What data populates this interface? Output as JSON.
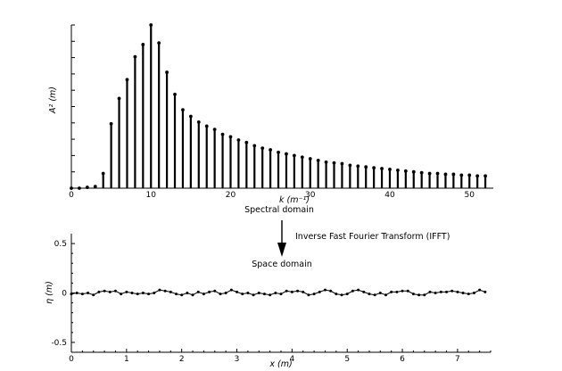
{
  "chart_data": [
    {
      "type": "bar",
      "style": "stem",
      "ylabel": "A² (m)",
      "xlabel": "k (m⁻¹)",
      "xlim": [
        0,
        53
      ],
      "ylim": [
        0,
        10
      ],
      "xticks": [
        0,
        10,
        20,
        30,
        40,
        50
      ],
      "x": [
        0,
        1,
        2,
        3,
        4,
        5,
        6,
        7,
        8,
        9,
        10,
        11,
        12,
        13,
        14,
        15,
        16,
        17,
        18,
        19,
        20,
        21,
        22,
        23,
        24,
        25,
        26,
        27,
        28,
        29,
        30,
        31,
        32,
        33,
        34,
        35,
        36,
        37,
        38,
        39,
        40,
        41,
        42,
        43,
        44,
        45,
        46,
        47,
        48,
        49,
        50,
        51,
        52
      ],
      "values": [
        0,
        0,
        0.05,
        0.1,
        0.9,
        3.95,
        5.5,
        6.65,
        8.05,
        8.8,
        10,
        8.9,
        7.1,
        5.75,
        4.8,
        4.4,
        4.05,
        3.8,
        3.6,
        3.3,
        3.15,
        2.95,
        2.8,
        2.6,
        2.45,
        2.35,
        2.2,
        2.1,
        2.0,
        1.9,
        1.8,
        1.7,
        1.6,
        1.55,
        1.5,
        1.4,
        1.35,
        1.3,
        1.25,
        1.2,
        1.15,
        1.1,
        1.05,
        1.0,
        0.95,
        0.9,
        0.9,
        0.85,
        0.85,
        0.8,
        0.8,
        0.75,
        0.75
      ],
      "grid": false
    },
    {
      "type": "line",
      "ylabel": "η (m)",
      "xlabel": "x (m)",
      "xlim": [
        0,
        7.6
      ],
      "ylim": [
        -0.6,
        0.6
      ],
      "xticks": [
        0,
        1,
        2,
        3,
        4,
        5,
        6,
        7
      ],
      "yticks": [
        -0.5,
        0,
        0.5
      ],
      "ytick_labels": [
        "-0.5",
        "0",
        "0.5"
      ],
      "x": [
        0,
        0.1,
        0.2,
        0.3,
        0.4,
        0.5,
        0.6,
        0.7,
        0.8,
        0.9,
        1.0,
        1.1,
        1.2,
        1.3,
        1.4,
        1.5,
        1.6,
        1.7,
        1.8,
        1.9,
        2.0,
        2.1,
        2.2,
        2.3,
        2.4,
        2.5,
        2.6,
        2.7,
        2.8,
        2.9,
        3.0,
        3.1,
        3.2,
        3.3,
        3.4,
        3.5,
        3.6,
        3.7,
        3.8,
        3.9,
        4.0,
        4.1,
        4.2,
        4.3,
        4.4,
        4.5,
        4.6,
        4.7,
        4.8,
        4.9,
        5.0,
        5.1,
        5.2,
        5.3,
        5.4,
        5.5,
        5.6,
        5.7,
        5.8,
        5.9,
        6.0,
        6.1,
        6.2,
        6.3,
        6.4,
        6.5,
        6.6,
        6.7,
        6.8,
        6.9,
        7.0,
        7.1,
        7.2,
        7.3,
        7.4,
        7.5
      ],
      "values": [
        -0.01,
        0.0,
        -0.01,
        0.0,
        -0.02,
        0.01,
        0.02,
        0.01,
        0.02,
        -0.01,
        0.01,
        0.0,
        -0.01,
        0.0,
        -0.01,
        0.0,
        0.03,
        0.02,
        0.01,
        -0.01,
        -0.02,
        0.0,
        -0.02,
        0.01,
        -0.01,
        0.01,
        0.02,
        -0.01,
        0.0,
        0.03,
        0.01,
        -0.01,
        0.0,
        -0.02,
        0.0,
        -0.01,
        -0.02,
        0.0,
        -0.01,
        0.02,
        0.01,
        0.02,
        0.01,
        -0.02,
        -0.01,
        0.01,
        0.03,
        0.02,
        -0.01,
        -0.02,
        -0.01,
        0.02,
        0.03,
        0.01,
        -0.01,
        -0.02,
        0.0,
        -0.02,
        0.01,
        0.01,
        0.02,
        0.02,
        -0.01,
        -0.02,
        -0.02,
        0.01,
        0.0,
        0.01,
        0.01,
        0.02,
        0.01,
        0.0,
        -0.01,
        0.0,
        0.03,
        0.01
      ],
      "grid": false
    }
  ],
  "annotations": {
    "spectral_domain": "Spectral  domain",
    "ifft": "Inverse Fast Fourier Transform (IFFT)",
    "space_domain": "Space domain"
  }
}
